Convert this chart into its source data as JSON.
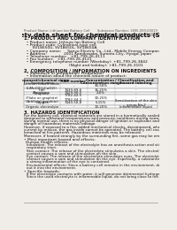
{
  "bg_color": "#f0ede8",
  "header_top_left": "Product Name: Lithium Ion Battery Cell",
  "header_top_right": "Substance Number: 1895-099-00019\nEstablishment / Revision: Dec.7.2010",
  "title": "Safety data sheet for chemical products (SDS)",
  "section1_title": "1. PRODUCT AND COMPANY IDENTIFICATION",
  "section1_lines": [
    "  • Product name: Lithium Ion Battery Cell",
    "  • Product code: Cylindrical-type cell",
    "       SV18650U, SV18650L, SV18650A",
    "  • Company name:     Sanyo Electric Co., Ltd., Mobile Energy Company",
    "  • Address:              2001 Kamikosaka, Sumoto-City, Hyogo, Japan",
    "  • Telephone number:   +81-799-26-4111",
    "  • Fax number:   +81-799-26-4121",
    "  • Emergency telephone number (Weekday): +81-799-26-3842",
    "                                     (Night and holiday): +81-799-26-3101"
  ],
  "section2_title": "2. COMPOSITION / INFORMATION ON INGREDIENTS",
  "section2_intro": "  • Substance or preparation: Preparation",
  "section2_sub": "  • Information about the chemical nature of product:",
  "table_headers": [
    "Component/chemical name",
    "CAS number",
    "Concentration /\nConcentration range",
    "Classification and\nhazard labeling"
  ],
  "table_subheader": "Several name",
  "table_rows": [
    [
      "Lithium cobalt oxide\n(LiMnO2(LiCoO2))",
      "-",
      "30-50%",
      "-"
    ],
    [
      "Iron",
      "7439-89-6",
      "16-25%",
      "-"
    ],
    [
      "Aluminum",
      "7429-90-5",
      "2-6%",
      "-"
    ],
    [
      "Graphite\n(Flake or graphite)\n(Artificial graphite)",
      "7782-42-5\n7782-44-2",
      "10-25%",
      "-"
    ],
    [
      "Copper",
      "7440-50-8",
      "5-15%",
      "Sensitization of the skin\ngroup No.2"
    ],
    [
      "Organic electrolyte",
      "-",
      "10-20%",
      "Inflammable liquid"
    ]
  ],
  "section3_title": "3. HAZARDS IDENTIFICATION",
  "section3_paras": [
    "For the battery cell, chemical materials are stored in a hermetically sealed metal case, designed to withstand temperatures and pressure-conditions during normal use. As a result, during normal use, there is no physical danger of ignition or explosion and there is no danger of hazardous materials leakage.",
    "However, if exposed to a fire, added mechanical shocks, decomposed, when an electric current by misuse, the gas inside cannot be operated. The battery cell case will be breached at fire-patterns. Hazardous materials may be released.",
    "Moreover, if heated strongly by the surrounding fire, some gas may be emitted."
  ],
  "section3_bullet1": "• Most important hazard and effects:",
  "section3_human_header": "Human health effects:",
  "section3_human_lines": [
    "Inhalation: The release of the electrolyte has an anesthesia action and stimulates in respiratory tract.",
    "Skin contact: The release of the electrolyte stimulates a skin. The electrolyte skin contact causes a sore and stimulation on the skin.",
    "Eye contact: The release of the electrolyte stimulates eyes. The electrolyte eye contact causes a sore and stimulation on the eye. Especially, a substance that causes a strong inflammation of the eye is contained.",
    "Environmental effects: Since a battery cell remains in the environment, do not throw out it into the environment."
  ],
  "section3_bullet2": "• Specific hazards:",
  "section3_specific_lines": [
    "If the electrolyte contacts with water, it will generate detrimental hydrogen fluoride.",
    "Since the used electrolyte is inflammable liquid, do not bring close to fire."
  ]
}
